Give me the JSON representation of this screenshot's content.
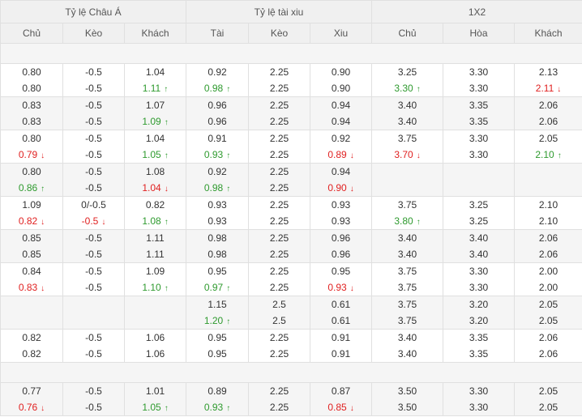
{
  "header": {
    "groups": [
      "Tỷ lệ Châu Á",
      "Tỷ lệ tài xiu",
      "1X2"
    ],
    "columns": [
      "Chủ",
      "Kèo",
      "Khách",
      "Tài",
      "Kèo",
      "Xiu",
      "Chủ",
      "Hòa",
      "Khách"
    ]
  },
  "icons": {
    "up": "arrow-up-icon",
    "down": "arrow-down-icon"
  },
  "colors": {
    "up": "#2e9a2e",
    "down": "#e02020",
    "header_bg": "#f0f0f0",
    "alt_row_bg": "#f5f5f5"
  },
  "rows": [
    {
      "cells": [
        [
          {
            "v": "0.80"
          },
          {
            "v": "0.80"
          }
        ],
        [
          {
            "v": "-0.5"
          },
          {
            "v": "-0.5"
          }
        ],
        [
          {
            "v": "1.04"
          },
          {
            "v": "1.11",
            "t": "up",
            "a": "↑"
          }
        ],
        [
          {
            "v": "0.92"
          },
          {
            "v": "0.98",
            "t": "up",
            "a": "↑"
          }
        ],
        [
          {
            "v": "2.25"
          },
          {
            "v": "2.25"
          }
        ],
        [
          {
            "v": "0.90"
          },
          {
            "v": "0.90"
          }
        ],
        [
          {
            "v": "3.25"
          },
          {
            "v": "3.30",
            "t": "up",
            "a": "↑"
          }
        ],
        [
          {
            "v": "3.30"
          },
          {
            "v": "3.30"
          }
        ],
        [
          {
            "v": "2.13"
          },
          {
            "v": "2.11",
            "t": "down",
            "a": "↓"
          }
        ]
      ]
    },
    {
      "cells": [
        [
          {
            "v": "0.83"
          },
          {
            "v": "0.83"
          }
        ],
        [
          {
            "v": "-0.5"
          },
          {
            "v": "-0.5"
          }
        ],
        [
          {
            "v": "1.07"
          },
          {
            "v": "1.09",
            "t": "up",
            "a": "↑"
          }
        ],
        [
          {
            "v": "0.96"
          },
          {
            "v": "0.96"
          }
        ],
        [
          {
            "v": "2.25"
          },
          {
            "v": "2.25"
          }
        ],
        [
          {
            "v": "0.94"
          },
          {
            "v": "0.94"
          }
        ],
        [
          {
            "v": "3.40"
          },
          {
            "v": "3.40"
          }
        ],
        [
          {
            "v": "3.35"
          },
          {
            "v": "3.35"
          }
        ],
        [
          {
            "v": "2.06"
          },
          {
            "v": "2.06"
          }
        ]
      ]
    },
    {
      "cells": [
        [
          {
            "v": "0.80"
          },
          {
            "v": "0.79",
            "t": "down",
            "a": "↓"
          }
        ],
        [
          {
            "v": "-0.5"
          },
          {
            "v": "-0.5"
          }
        ],
        [
          {
            "v": "1.04"
          },
          {
            "v": "1.05",
            "t": "up",
            "a": "↑"
          }
        ],
        [
          {
            "v": "0.91"
          },
          {
            "v": "0.93",
            "t": "up",
            "a": "↑"
          }
        ],
        [
          {
            "v": "2.25"
          },
          {
            "v": "2.25"
          }
        ],
        [
          {
            "v": "0.92"
          },
          {
            "v": "0.89",
            "t": "down",
            "a": "↓"
          }
        ],
        [
          {
            "v": "3.75"
          },
          {
            "v": "3.70",
            "t": "down",
            "a": "↓"
          }
        ],
        [
          {
            "v": "3.30"
          },
          {
            "v": "3.30"
          }
        ],
        [
          {
            "v": "2.05"
          },
          {
            "v": "2.10",
            "t": "up",
            "a": "↑"
          }
        ]
      ]
    },
    {
      "cells": [
        [
          {
            "v": "0.80"
          },
          {
            "v": "0.86",
            "t": "up",
            "a": "↑"
          }
        ],
        [
          {
            "v": "-0.5"
          },
          {
            "v": "-0.5"
          }
        ],
        [
          {
            "v": "1.08"
          },
          {
            "v": "1.04",
            "t": "down",
            "a": "↓"
          }
        ],
        [
          {
            "v": "0.92"
          },
          {
            "v": "0.98",
            "t": "up",
            "a": "↑"
          }
        ],
        [
          {
            "v": "2.25"
          },
          {
            "v": "2.25"
          }
        ],
        [
          {
            "v": "0.94"
          },
          {
            "v": "0.90",
            "t": "down",
            "a": "↓"
          }
        ],
        [],
        [],
        []
      ]
    },
    {
      "cells": [
        [
          {
            "v": "1.09"
          },
          {
            "v": "0.82",
            "t": "down",
            "a": "↓"
          }
        ],
        [
          {
            "v": "0/-0.5"
          },
          {
            "v": "-0.5",
            "t": "down",
            "a": "↓"
          }
        ],
        [
          {
            "v": "0.82"
          },
          {
            "v": "1.08",
            "t": "up",
            "a": "↑"
          }
        ],
        [
          {
            "v": "0.93"
          },
          {
            "v": "0.93"
          }
        ],
        [
          {
            "v": "2.25"
          },
          {
            "v": "2.25"
          }
        ],
        [
          {
            "v": "0.93"
          },
          {
            "v": "0.93"
          }
        ],
        [
          {
            "v": "3.75"
          },
          {
            "v": "3.80",
            "t": "up",
            "a": "↑"
          }
        ],
        [
          {
            "v": "3.25"
          },
          {
            "v": "3.25"
          }
        ],
        [
          {
            "v": "2.10"
          },
          {
            "v": "2.10"
          }
        ]
      ]
    },
    {
      "cells": [
        [
          {
            "v": "0.85"
          },
          {
            "v": "0.85"
          }
        ],
        [
          {
            "v": "-0.5"
          },
          {
            "v": "-0.5"
          }
        ],
        [
          {
            "v": "1.11"
          },
          {
            "v": "1.11"
          }
        ],
        [
          {
            "v": "0.98"
          },
          {
            "v": "0.98"
          }
        ],
        [
          {
            "v": "2.25"
          },
          {
            "v": "2.25"
          }
        ],
        [
          {
            "v": "0.96"
          },
          {
            "v": "0.96"
          }
        ],
        [
          {
            "v": "3.40"
          },
          {
            "v": "3.40"
          }
        ],
        [
          {
            "v": "3.40"
          },
          {
            "v": "3.40"
          }
        ],
        [
          {
            "v": "2.06"
          },
          {
            "v": "2.06"
          }
        ]
      ]
    },
    {
      "cells": [
        [
          {
            "v": "0.84"
          },
          {
            "v": "0.83",
            "t": "down",
            "a": "↓"
          }
        ],
        [
          {
            "v": "-0.5"
          },
          {
            "v": "-0.5"
          }
        ],
        [
          {
            "v": "1.09"
          },
          {
            "v": "1.10",
            "t": "up",
            "a": "↑"
          }
        ],
        [
          {
            "v": "0.95"
          },
          {
            "v": "0.97",
            "t": "up",
            "a": "↑"
          }
        ],
        [
          {
            "v": "2.25"
          },
          {
            "v": "2.25"
          }
        ],
        [
          {
            "v": "0.95"
          },
          {
            "v": "0.93",
            "t": "down",
            "a": "↓"
          }
        ],
        [
          {
            "v": "3.75"
          },
          {
            "v": "3.75"
          }
        ],
        [
          {
            "v": "3.30"
          },
          {
            "v": "3.30"
          }
        ],
        [
          {
            "v": "2.00"
          },
          {
            "v": "2.00"
          }
        ]
      ]
    },
    {
      "cells": [
        [],
        [],
        [],
        [
          {
            "v": "1.15"
          },
          {
            "v": "1.20",
            "t": "up",
            "a": "↑"
          }
        ],
        [
          {
            "v": "2.5"
          },
          {
            "v": "2.5"
          }
        ],
        [
          {
            "v": "0.61"
          },
          {
            "v": "0.61"
          }
        ],
        [
          {
            "v": "3.75"
          },
          {
            "v": "3.75"
          }
        ],
        [
          {
            "v": "3.20"
          },
          {
            "v": "3.20"
          }
        ],
        [
          {
            "v": "2.05"
          },
          {
            "v": "2.05"
          }
        ]
      ]
    },
    {
      "cells": [
        [
          {
            "v": "0.82"
          },
          {
            "v": "0.82"
          }
        ],
        [
          {
            "v": "-0.5"
          },
          {
            "v": "-0.5"
          }
        ],
        [
          {
            "v": "1.06"
          },
          {
            "v": "1.06"
          }
        ],
        [
          {
            "v": "0.95"
          },
          {
            "v": "0.95"
          }
        ],
        [
          {
            "v": "2.25"
          },
          {
            "v": "2.25"
          }
        ],
        [
          {
            "v": "0.91"
          },
          {
            "v": "0.91"
          }
        ],
        [
          {
            "v": "3.40"
          },
          {
            "v": "3.40"
          }
        ],
        [
          {
            "v": "3.35"
          },
          {
            "v": "3.35"
          }
        ],
        [
          {
            "v": "2.06"
          },
          {
            "v": "2.06"
          }
        ]
      ]
    },
    {
      "spacer": true
    },
    {
      "cells": [
        [
          {
            "v": "0.77"
          },
          {
            "v": "0.76",
            "t": "down",
            "a": "↓"
          }
        ],
        [
          {
            "v": "-0.5"
          },
          {
            "v": "-0.5"
          }
        ],
        [
          {
            "v": "1.01"
          },
          {
            "v": "1.05",
            "t": "up",
            "a": "↑"
          }
        ],
        [
          {
            "v": "0.89"
          },
          {
            "v": "0.93",
            "t": "up",
            "a": "↑"
          }
        ],
        [
          {
            "v": "2.25"
          },
          {
            "v": "2.25"
          }
        ],
        [
          {
            "v": "0.87"
          },
          {
            "v": "0.85",
            "t": "down",
            "a": "↓"
          }
        ],
        [
          {
            "v": "3.50"
          },
          {
            "v": "3.50"
          }
        ],
        [
          {
            "v": "3.30"
          },
          {
            "v": "3.30"
          }
        ],
        [
          {
            "v": "2.05"
          },
          {
            "v": "2.05"
          }
        ]
      ]
    }
  ]
}
